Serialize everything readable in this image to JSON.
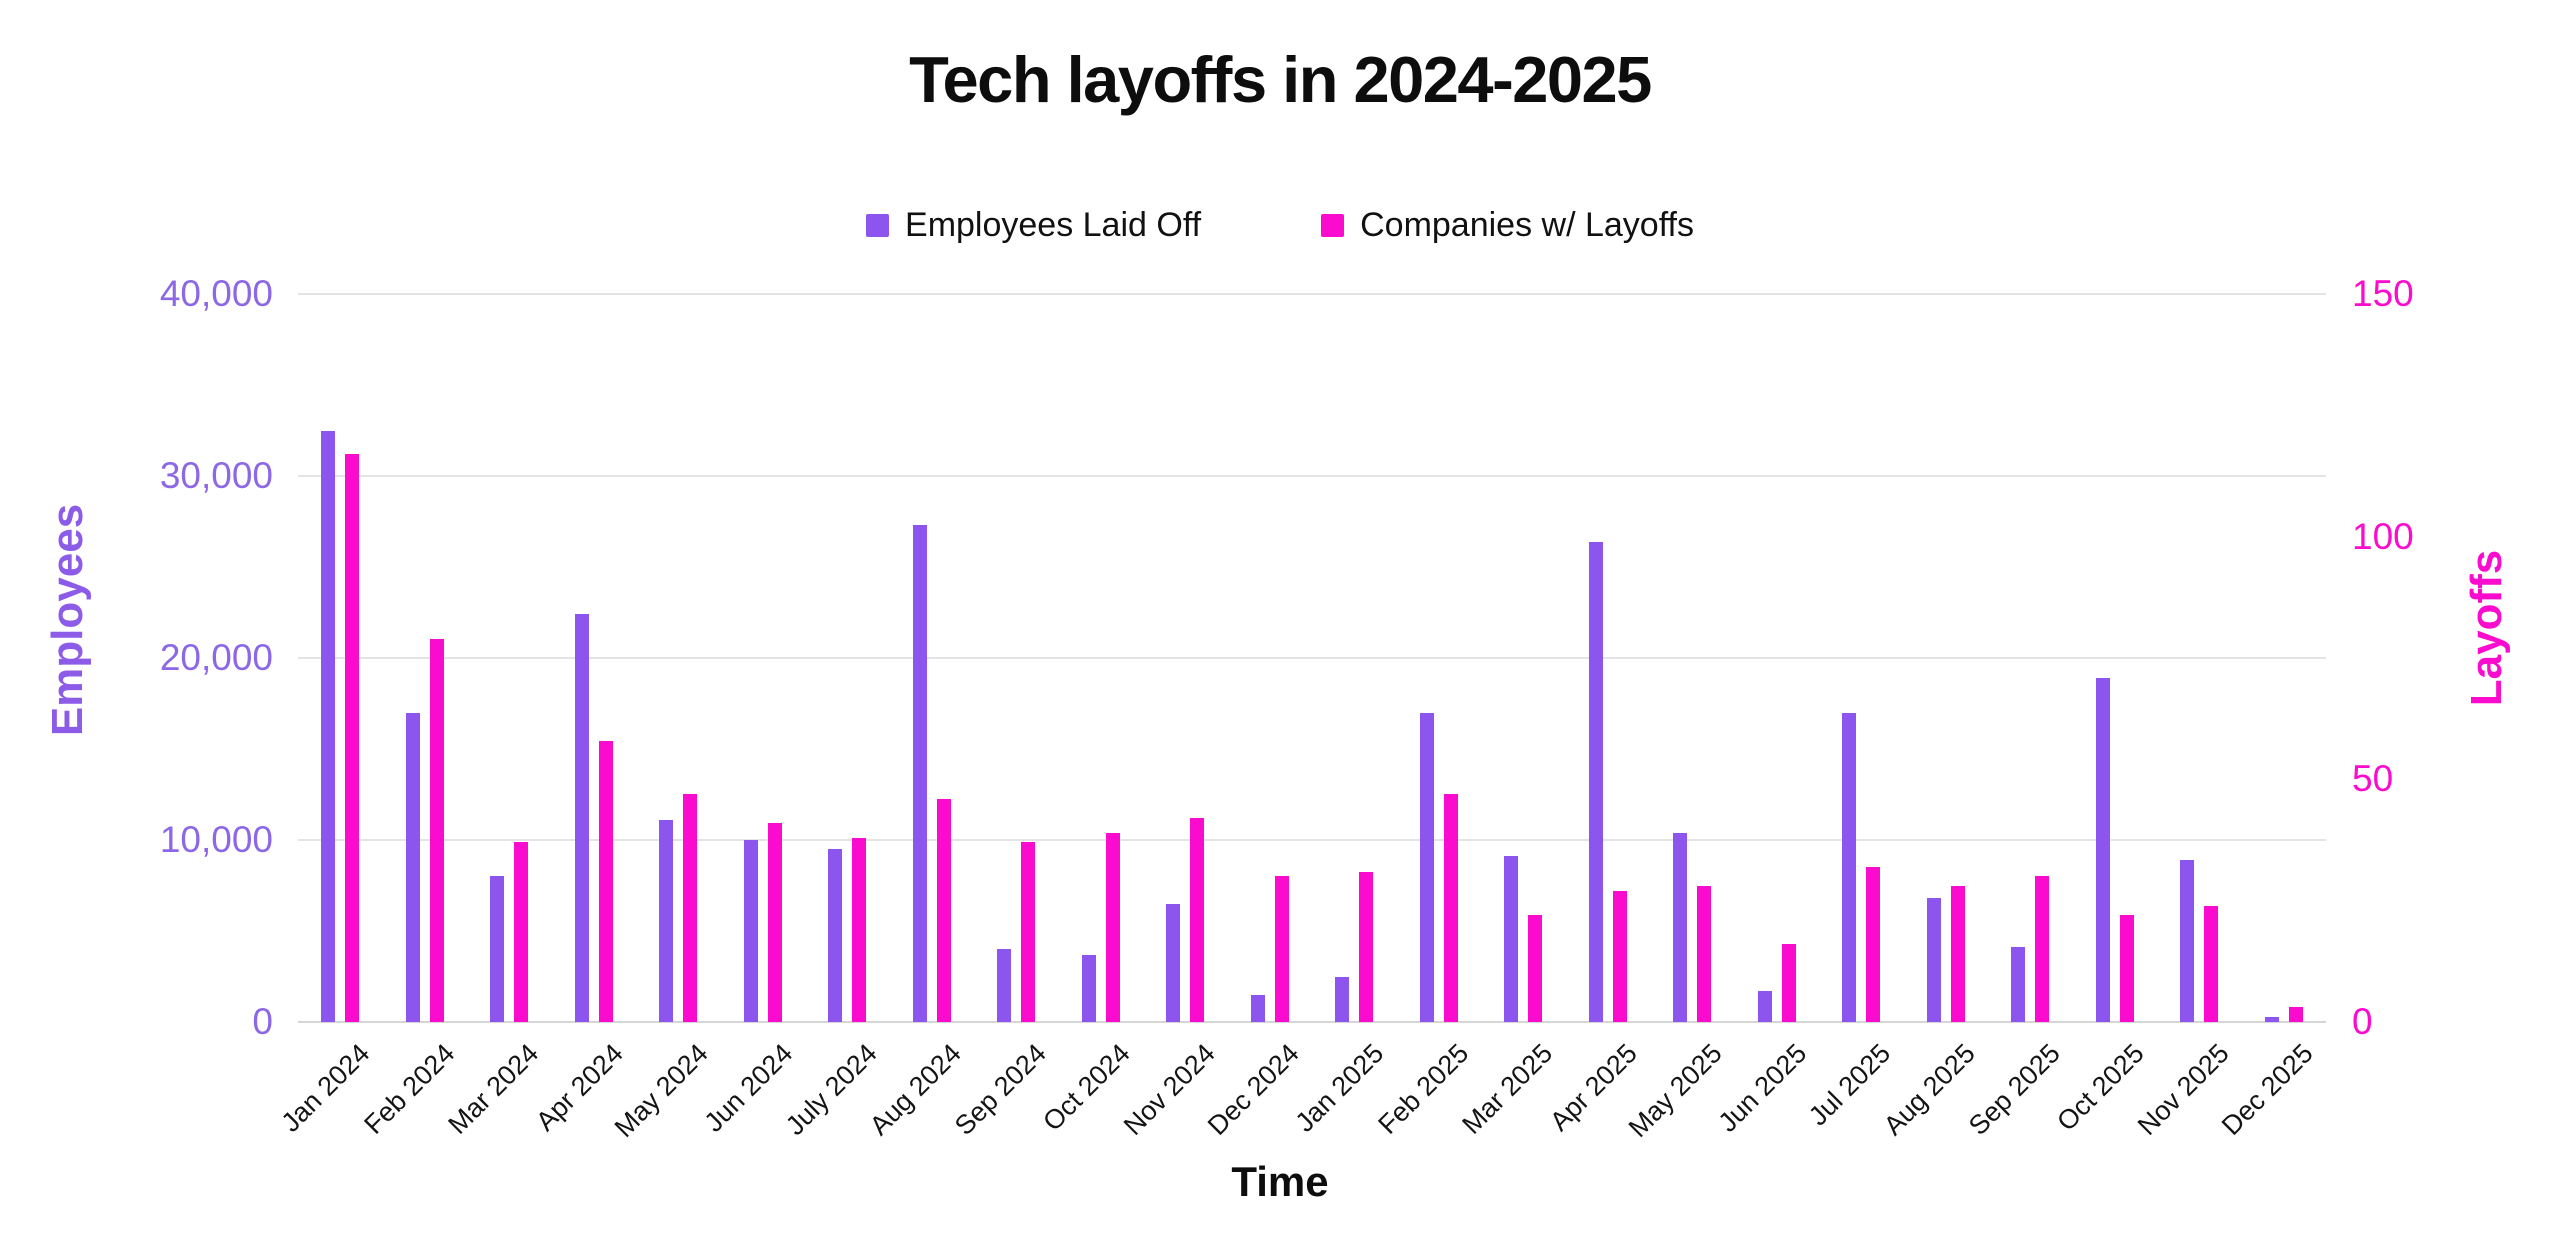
{
  "chart_data": {
    "type": "bar",
    "title": "Tech layoffs in 2024-2025",
    "xlabel": "Time",
    "categories": [
      "Jan 2024",
      "Feb 2024",
      "Mar 2024",
      "Apr 2024",
      "May 2024",
      "Jun 2024",
      "July 2024",
      "Aug 2024",
      "Sep 2024",
      "Oct 2024",
      "Nov 2024",
      "Dec 2024",
      "Jan 2025",
      "Feb 2025",
      "Mar 2025",
      "Apr 2025",
      "May 2025",
      "Jun 2025",
      "Jul 2025",
      "Aug 2025",
      "Sep 2025",
      "Oct 2025",
      "Nov 2025",
      "Dec 2025"
    ],
    "series": [
      {
        "name": "Employees Laid Off",
        "axis": "left",
        "color": "#8b55ee",
        "values": [
          32500,
          17000,
          8000,
          22400,
          11100,
          10000,
          9500,
          27300,
          4000,
          3700,
          6500,
          1500,
          2500,
          17000,
          9100,
          26400,
          10400,
          1700,
          17000,
          6800,
          4100,
          18900,
          8900,
          300
        ]
      },
      {
        "name": "Companies w/ Layoffs",
        "axis": "right",
        "color": "#fb0bce",
        "values": [
          117,
          79,
          37,
          58,
          47,
          41,
          38,
          46,
          37,
          39,
          42,
          30,
          31,
          47,
          22,
          27,
          28,
          16,
          32,
          28,
          30,
          22,
          24,
          3
        ]
      }
    ],
    "left_axis": {
      "label": "Employees",
      "min": 0,
      "max": 40000,
      "ticks": [
        0,
        10000,
        20000,
        30000,
        40000
      ],
      "tick_labels": [
        "0",
        "10,000",
        "20,000",
        "30,000",
        "40,000"
      ],
      "text_color": "#8d68e6"
    },
    "right_axis": {
      "label": "Layoffs",
      "min": 0,
      "max": 150,
      "ticks": [
        0,
        50,
        100,
        150
      ],
      "tick_labels": [
        "0",
        "50",
        "100",
        "150"
      ],
      "text_color": "#fb0bce"
    },
    "grid": true,
    "gridline_color": "#e4e4e4",
    "legend_position": "top",
    "background_color": "#ffffff"
  }
}
